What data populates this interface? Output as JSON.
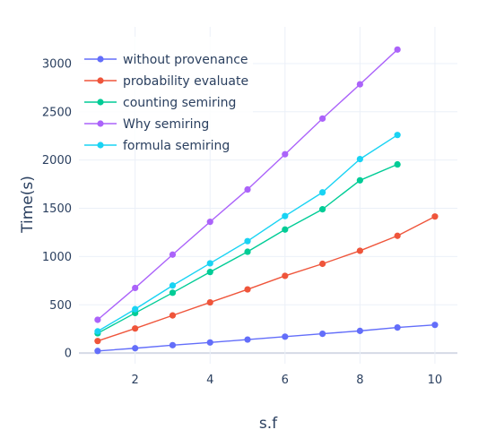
{
  "chart_data": {
    "type": "line",
    "title": "",
    "xlabel": "s.f",
    "ylabel": "Time(s)",
    "xlim": [
      0.5,
      10.6
    ],
    "ylim": [
      -110,
      3380
    ],
    "xticks": [
      2,
      4,
      6,
      8,
      10
    ],
    "yticks": [
      0,
      500,
      1000,
      1500,
      2000,
      2500,
      3000
    ],
    "grid": true,
    "legend_position": "top-left",
    "series": [
      {
        "name": "without provenance",
        "color": "#636efa",
        "x": [
          1,
          2,
          3,
          4,
          5,
          6,
          7,
          8,
          9,
          10
        ],
        "y": [
          22,
          50,
          82,
          110,
          140,
          170,
          200,
          230,
          265,
          292
        ]
      },
      {
        "name": "probability evaluate",
        "color": "#ef553b",
        "x": [
          1,
          2,
          3,
          4,
          5,
          6,
          7,
          8,
          9,
          10
        ],
        "y": [
          125,
          255,
          390,
          525,
          660,
          800,
          925,
          1060,
          1215,
          1415
        ]
      },
      {
        "name": "counting semiring",
        "color": "#00cc96",
        "x": [
          1,
          2,
          3,
          4,
          5,
          6,
          7,
          8,
          9
        ],
        "y": [
          205,
          415,
          625,
          840,
          1050,
          1280,
          1490,
          1790,
          1955
        ]
      },
      {
        "name": "Why semiring",
        "color": "#ab63fa",
        "x": [
          1,
          2,
          3,
          4,
          5,
          6,
          7,
          8,
          9
        ],
        "y": [
          345,
          675,
          1020,
          1360,
          1695,
          2060,
          2430,
          2785,
          3145
        ]
      },
      {
        "name": "formula semiring",
        "color": "#19d3f3",
        "x": [
          1,
          2,
          3,
          4,
          5,
          6,
          7,
          8,
          9
        ],
        "y": [
          225,
          455,
          700,
          930,
          1160,
          1420,
          1665,
          2010,
          2260
        ]
      }
    ]
  }
}
